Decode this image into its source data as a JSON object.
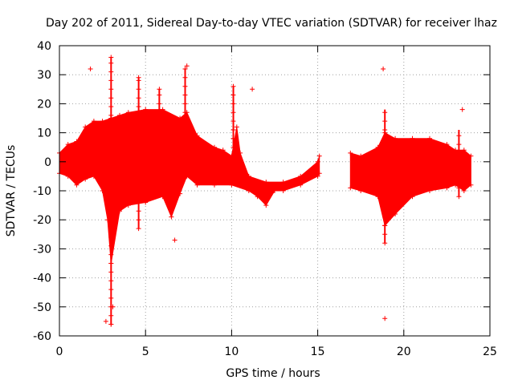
{
  "chart_data": {
    "type": "scatter",
    "title": "Day 202 of 2011, Sidereal Day-to-day VTEC variation (SDTVAR) for receiver lhaz",
    "xlabel": "GPS time / hours",
    "ylabel": "SDTVAR / TECUs",
    "xlim": [
      0,
      25
    ],
    "ylim": [
      -60,
      40
    ],
    "xticks": [
      0,
      5,
      10,
      15,
      20,
      25
    ],
    "yticks": [
      -60,
      -50,
      -40,
      -30,
      -20,
      -10,
      0,
      10,
      20,
      30,
      40
    ],
    "grid": true,
    "marker": "+",
    "color": "#ff0000",
    "series": [
      {
        "name": "SDTVAR",
        "upper_envelope": [
          [
            0.0,
            3
          ],
          [
            0.5,
            6
          ],
          [
            1.0,
            7
          ],
          [
            1.5,
            12
          ],
          [
            2.0,
            14
          ],
          [
            2.5,
            14
          ],
          [
            3.0,
            15
          ],
          [
            3.5,
            16
          ],
          [
            4.0,
            17
          ],
          [
            5.0,
            18
          ],
          [
            6.0,
            18
          ],
          [
            7.0,
            15
          ],
          [
            7.4,
            17
          ],
          [
            8.0,
            9
          ],
          [
            9.0,
            5
          ],
          [
            9.5,
            4
          ],
          [
            10.0,
            2
          ],
          [
            10.3,
            12
          ],
          [
            10.5,
            3
          ],
          [
            11.0,
            -5
          ],
          [
            12.0,
            -7
          ],
          [
            13.0,
            -7
          ],
          [
            14.0,
            -5
          ],
          [
            15.0,
            0
          ],
          [
            15.1,
            2
          ]
        ],
        "lower_envelope": [
          [
            0.0,
            -4
          ],
          [
            0.5,
            -5
          ],
          [
            1.0,
            -8
          ],
          [
            1.5,
            -6
          ],
          [
            2.0,
            -5
          ],
          [
            2.5,
            -10
          ],
          [
            2.8,
            -20
          ],
          [
            3.0,
            -35
          ],
          [
            3.5,
            -17
          ],
          [
            4.0,
            -15
          ],
          [
            5.0,
            -14
          ],
          [
            6.0,
            -12
          ],
          [
            6.5,
            -19
          ],
          [
            7.0,
            -11
          ],
          [
            7.4,
            -5
          ],
          [
            8.0,
            -8
          ],
          [
            9.0,
            -8
          ],
          [
            10.0,
            -8
          ],
          [
            11.0,
            -10
          ],
          [
            11.5,
            -12
          ],
          [
            12.0,
            -15
          ],
          [
            12.5,
            -10
          ],
          [
            13.0,
            -10
          ],
          [
            14.0,
            -8
          ],
          [
            15.0,
            -5
          ],
          [
            15.1,
            -4
          ]
        ],
        "upper_envelope_segment2": [
          [
            16.9,
            3
          ],
          [
            17.5,
            2
          ],
          [
            18.5,
            5
          ],
          [
            18.9,
            10
          ],
          [
            19.5,
            8
          ],
          [
            20.5,
            8
          ],
          [
            21.5,
            8
          ],
          [
            22.5,
            6
          ],
          [
            23.0,
            4
          ],
          [
            23.5,
            4
          ],
          [
            23.9,
            2
          ]
        ],
        "lower_envelope_segment2": [
          [
            16.9,
            -9
          ],
          [
            17.5,
            -10
          ],
          [
            18.5,
            -12
          ],
          [
            18.9,
            -22
          ],
          [
            19.5,
            -18
          ],
          [
            20.5,
            -12
          ],
          [
            21.5,
            -10
          ],
          [
            22.5,
            -9
          ],
          [
            23.0,
            -8
          ],
          [
            23.5,
            -10
          ],
          [
            23.9,
            -8
          ]
        ],
        "outliers": [
          [
            1.8,
            32
          ],
          [
            2.7,
            -55
          ],
          [
            3.0,
            36
          ],
          [
            3.0,
            -56
          ],
          [
            3.1,
            -50
          ],
          [
            4.6,
            29
          ],
          [
            5.8,
            25
          ],
          [
            6.7,
            -27
          ],
          [
            7.4,
            33
          ],
          [
            11.2,
            25
          ],
          [
            18.8,
            32
          ],
          [
            18.9,
            -54
          ],
          [
            23.4,
            18
          ]
        ],
        "spikes": [
          [
            3.0,
            -56,
            36
          ],
          [
            4.6,
            -23,
            29
          ],
          [
            5.8,
            2,
            25
          ],
          [
            7.3,
            5,
            32
          ],
          [
            10.1,
            2,
            26
          ],
          [
            18.9,
            -28,
            18
          ],
          [
            23.2,
            -12,
            11
          ]
        ]
      }
    ]
  }
}
